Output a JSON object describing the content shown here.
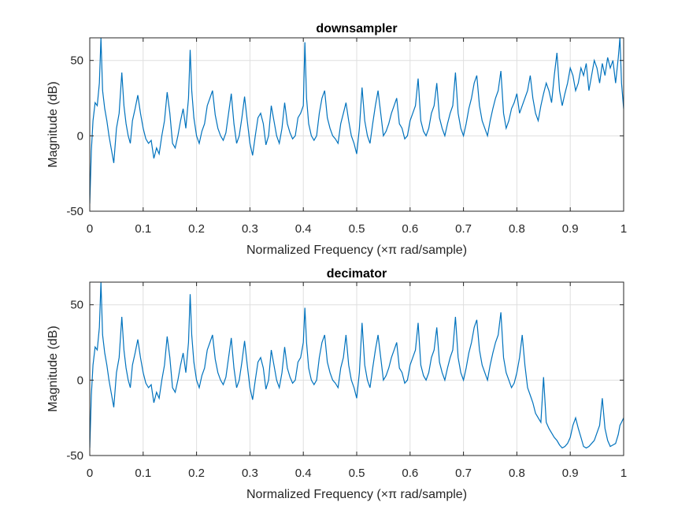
{
  "chart_data": [
    {
      "type": "line",
      "title": "downsampler",
      "xlabel": "Normalized Frequency (×π rad/sample)",
      "ylabel": "Magnitude (dB)",
      "xlim": [
        0,
        1
      ],
      "ylim": [
        -50,
        65
      ],
      "xticks": [
        0,
        0.1,
        0.2,
        0.3,
        0.4,
        0.5,
        0.6,
        0.7,
        0.8,
        0.9,
        1
      ],
      "xtick_labels": [
        "0",
        "0.1",
        "0.2",
        "0.3",
        "0.4",
        "0.5",
        "0.6",
        "0.7",
        "0.8",
        "0.9",
        "1"
      ],
      "yticks": [
        -50,
        0,
        50
      ],
      "ytick_labels": [
        "-50",
        "0",
        "50"
      ],
      "grid": true,
      "series": [
        {
          "color": "#0072BD",
          "x": [
            0,
            0.003,
            0.006,
            0.01,
            0.014,
            0.018,
            0.021,
            0.024,
            0.028,
            0.032,
            0.036,
            0.04,
            0.045,
            0.05,
            0.055,
            0.06,
            0.064,
            0.068,
            0.072,
            0.076,
            0.08,
            0.085,
            0.09,
            0.095,
            0.1,
            0.105,
            0.11,
            0.115,
            0.12,
            0.125,
            0.13,
            0.135,
            0.14,
            0.145,
            0.15,
            0.155,
            0.16,
            0.165,
            0.17,
            0.175,
            0.18,
            0.185,
            0.188,
            0.191,
            0.195,
            0.2,
            0.205,
            0.21,
            0.215,
            0.22,
            0.225,
            0.23,
            0.235,
            0.24,
            0.245,
            0.25,
            0.255,
            0.26,
            0.265,
            0.27,
            0.275,
            0.28,
            0.285,
            0.29,
            0.295,
            0.3,
            0.305,
            0.31,
            0.315,
            0.32,
            0.325,
            0.33,
            0.335,
            0.34,
            0.345,
            0.35,
            0.355,
            0.36,
            0.365,
            0.37,
            0.375,
            0.38,
            0.385,
            0.39,
            0.395,
            0.4,
            0.403,
            0.406,
            0.41,
            0.415,
            0.42,
            0.425,
            0.43,
            0.435,
            0.44,
            0.445,
            0.45,
            0.455,
            0.46,
            0.465,
            0.47,
            0.475,
            0.48,
            0.485,
            0.49,
            0.495,
            0.5,
            0.505,
            0.51,
            0.515,
            0.52,
            0.525,
            0.53,
            0.535,
            0.54,
            0.545,
            0.55,
            0.555,
            0.56,
            0.565,
            0.57,
            0.575,
            0.58,
            0.585,
            0.59,
            0.595,
            0.6,
            0.605,
            0.61,
            0.615,
            0.62,
            0.625,
            0.63,
            0.635,
            0.64,
            0.645,
            0.65,
            0.655,
            0.66,
            0.665,
            0.67,
            0.675,
            0.68,
            0.685,
            0.69,
            0.695,
            0.7,
            0.705,
            0.71,
            0.715,
            0.72,
            0.725,
            0.73,
            0.735,
            0.74,
            0.745,
            0.75,
            0.755,
            0.76,
            0.765,
            0.77,
            0.775,
            0.78,
            0.785,
            0.79,
            0.795,
            0.8,
            0.805,
            0.81,
            0.815,
            0.82,
            0.825,
            0.83,
            0.835,
            0.84,
            0.845,
            0.85,
            0.855,
            0.86,
            0.865,
            0.87,
            0.875,
            0.88,
            0.885,
            0.89,
            0.895,
            0.9,
            0.905,
            0.91,
            0.915,
            0.92,
            0.925,
            0.93,
            0.935,
            0.94,
            0.945,
            0.95,
            0.955,
            0.96,
            0.965,
            0.97,
            0.975,
            0.98,
            0.985,
            0.99,
            0.993,
            0.996,
            1.0
          ],
          "y": [
            -45,
            -10,
            10,
            22,
            20,
            35,
            65,
            30,
            18,
            10,
            0,
            -8,
            -18,
            5,
            15,
            42,
            20,
            8,
            0,
            -5,
            10,
            18,
            27,
            15,
            5,
            -2,
            -5,
            -3,
            -15,
            -8,
            -12,
            0,
            10,
            29,
            15,
            -5,
            -8,
            0,
            10,
            18,
            5,
            25,
            57,
            30,
            12,
            0,
            -5,
            3,
            8,
            20,
            25,
            30,
            14,
            5,
            0,
            -3,
            2,
            15,
            28,
            8,
            -5,
            0,
            12,
            26,
            10,
            -5,
            -13,
            0,
            12,
            15,
            8,
            -6,
            0,
            20,
            10,
            0,
            -5,
            5,
            22,
            8,
            2,
            -2,
            0,
            12,
            15,
            20,
            62,
            25,
            8,
            0,
            -3,
            0,
            15,
            25,
            30,
            12,
            5,
            0,
            -2,
            -5,
            8,
            15,
            22,
            10,
            0,
            -5,
            -12,
            5,
            32,
            10,
            0,
            -5,
            8,
            20,
            30,
            15,
            0,
            3,
            8,
            15,
            20,
            25,
            8,
            5,
            -2,
            0,
            10,
            15,
            20,
            38,
            10,
            3,
            0,
            5,
            15,
            20,
            35,
            12,
            5,
            0,
            8,
            15,
            20,
            42,
            15,
            5,
            0,
            8,
            18,
            25,
            35,
            40,
            20,
            10,
            5,
            0,
            10,
            18,
            25,
            30,
            43,
            15,
            5,
            10,
            18,
            22,
            28,
            15,
            20,
            25,
            30,
            40,
            25,
            15,
            10,
            20,
            28,
            35,
            30,
            22,
            40,
            55,
            30,
            20,
            28,
            35,
            45,
            40,
            30,
            35,
            45,
            40,
            48,
            30,
            40,
            50,
            45,
            35,
            48,
            40,
            52,
            45,
            50,
            35,
            52,
            65,
            35,
            18
          ]
        }
      ]
    },
    {
      "type": "line",
      "title": "decimator",
      "xlabel": "Normalized Frequency (×π rad/sample)",
      "ylabel": "Magnitude (dB)",
      "xlim": [
        0,
        1
      ],
      "ylim": [
        -50,
        65
      ],
      "xticks": [
        0,
        0.1,
        0.2,
        0.3,
        0.4,
        0.5,
        0.6,
        0.7,
        0.8,
        0.9,
        1
      ],
      "xtick_labels": [
        "0",
        "0.1",
        "0.2",
        "0.3",
        "0.4",
        "0.5",
        "0.6",
        "0.7",
        "0.8",
        "0.9",
        "1"
      ],
      "yticks": [
        -50,
        0,
        50
      ],
      "ytick_labels": [
        "-50",
        "0",
        "50"
      ],
      "grid": true,
      "series": [
        {
          "color": "#0072BD",
          "x": [
            0,
            0.003,
            0.006,
            0.01,
            0.014,
            0.018,
            0.021,
            0.024,
            0.028,
            0.032,
            0.036,
            0.04,
            0.045,
            0.05,
            0.055,
            0.06,
            0.064,
            0.068,
            0.072,
            0.076,
            0.08,
            0.085,
            0.09,
            0.095,
            0.1,
            0.105,
            0.11,
            0.115,
            0.12,
            0.125,
            0.13,
            0.135,
            0.14,
            0.145,
            0.15,
            0.155,
            0.16,
            0.165,
            0.17,
            0.175,
            0.18,
            0.185,
            0.188,
            0.191,
            0.195,
            0.2,
            0.205,
            0.21,
            0.215,
            0.22,
            0.225,
            0.23,
            0.235,
            0.24,
            0.245,
            0.25,
            0.255,
            0.26,
            0.265,
            0.27,
            0.275,
            0.28,
            0.285,
            0.29,
            0.295,
            0.3,
            0.305,
            0.31,
            0.315,
            0.32,
            0.325,
            0.33,
            0.335,
            0.34,
            0.345,
            0.35,
            0.355,
            0.36,
            0.365,
            0.37,
            0.375,
            0.38,
            0.385,
            0.39,
            0.395,
            0.4,
            0.403,
            0.406,
            0.41,
            0.415,
            0.42,
            0.425,
            0.43,
            0.435,
            0.44,
            0.445,
            0.45,
            0.455,
            0.46,
            0.465,
            0.47,
            0.475,
            0.48,
            0.485,
            0.49,
            0.495,
            0.5,
            0.505,
            0.51,
            0.515,
            0.52,
            0.525,
            0.53,
            0.535,
            0.54,
            0.545,
            0.55,
            0.555,
            0.56,
            0.565,
            0.57,
            0.575,
            0.58,
            0.585,
            0.59,
            0.595,
            0.6,
            0.605,
            0.61,
            0.615,
            0.62,
            0.625,
            0.63,
            0.635,
            0.64,
            0.645,
            0.65,
            0.655,
            0.66,
            0.665,
            0.67,
            0.675,
            0.68,
            0.685,
            0.69,
            0.695,
            0.7,
            0.705,
            0.71,
            0.715,
            0.72,
            0.725,
            0.73,
            0.735,
            0.74,
            0.745,
            0.75,
            0.755,
            0.76,
            0.765,
            0.77,
            0.775,
            0.78,
            0.785,
            0.79,
            0.795,
            0.8,
            0.805,
            0.81,
            0.815,
            0.82,
            0.825,
            0.83,
            0.835,
            0.84,
            0.845,
            0.85,
            0.855,
            0.86,
            0.865,
            0.87,
            0.875,
            0.88,
            0.885,
            0.89,
            0.895,
            0.9,
            0.905,
            0.91,
            0.915,
            0.92,
            0.925,
            0.93,
            0.935,
            0.94,
            0.945,
            0.95,
            0.955,
            0.96,
            0.965,
            0.97,
            0.975,
            0.98,
            0.985,
            0.99,
            0.993,
            0.996,
            1.0
          ],
          "y": [
            -45,
            -10,
            10,
            22,
            20,
            35,
            65,
            30,
            18,
            10,
            0,
            -8,
            -18,
            5,
            15,
            42,
            20,
            8,
            0,
            -5,
            10,
            18,
            27,
            15,
            5,
            -2,
            -5,
            -3,
            -15,
            -8,
            -12,
            0,
            10,
            29,
            15,
            -5,
            -8,
            0,
            10,
            18,
            5,
            25,
            57,
            30,
            12,
            0,
            -5,
            3,
            8,
            20,
            25,
            30,
            14,
            5,
            0,
            -3,
            2,
            15,
            28,
            8,
            -5,
            0,
            12,
            26,
            10,
            -5,
            -13,
            0,
            12,
            15,
            8,
            -6,
            0,
            20,
            10,
            0,
            -5,
            5,
            22,
            8,
            2,
            -2,
            0,
            12,
            15,
            25,
            48,
            25,
            8,
            0,
            -3,
            0,
            15,
            25,
            30,
            12,
            5,
            0,
            -2,
            -5,
            8,
            15,
            30,
            10,
            0,
            -5,
            -12,
            5,
            38,
            10,
            0,
            -5,
            8,
            20,
            30,
            15,
            0,
            3,
            8,
            15,
            20,
            25,
            8,
            5,
            -2,
            0,
            10,
            15,
            20,
            38,
            10,
            3,
            0,
            5,
            15,
            20,
            35,
            12,
            5,
            0,
            8,
            15,
            20,
            42,
            15,
            5,
            0,
            8,
            18,
            25,
            35,
            40,
            20,
            10,
            5,
            0,
            10,
            18,
            25,
            30,
            45,
            15,
            5,
            0,
            -5,
            -2,
            5,
            15,
            30,
            10,
            -5,
            -10,
            -15,
            -22,
            -25,
            -28,
            2,
            -28,
            -32,
            -35,
            -38,
            -40,
            -43,
            -45,
            -44,
            -42,
            -38,
            -30,
            -25,
            -32,
            -38,
            -44,
            -45,
            -44,
            -42,
            -40,
            -35,
            -30,
            -12,
            -32,
            -40,
            -44,
            -43,
            -42,
            -36,
            -30,
            -28,
            -25
          ]
        }
      ]
    }
  ]
}
